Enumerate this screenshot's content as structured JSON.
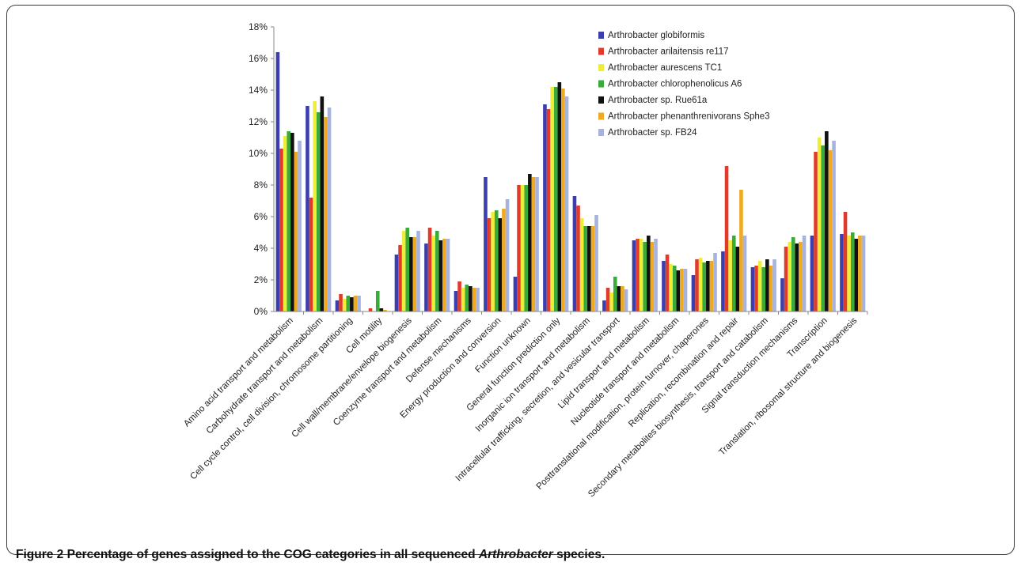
{
  "chart_data": {
    "type": "bar",
    "ylim": [
      0,
      18
    ],
    "yticks": [
      "0%",
      "2%",
      "4%",
      "6%",
      "8%",
      "10%",
      "12%",
      "14%",
      "16%",
      "18%"
    ],
    "ytick_values": [
      0,
      2,
      4,
      6,
      8,
      10,
      12,
      14,
      16,
      18
    ],
    "grid": false,
    "legend_position": "top-right",
    "categories": [
      "Amino acid transport and metabolism",
      "Carbohydrate transport and metabolism",
      "Cell cycle control, cell division, chromosome partitioning",
      "Cell motility",
      "Cell wall/membrane/envelope biogenesis",
      "Coenzyme transport and metabolism",
      "Defense mechanisms",
      "Energy production and conversion",
      "Function unknown",
      "General function prediction only",
      "Inorganic ion transport and metabolism",
      "Intracellular trafficking, secretion, and vesicular transport",
      "Lipid transport and metabolism",
      "Nucleotide transport and metabolism",
      "Posttranslational modification, protein turnover, chaperones",
      "Replication, recombination and repair",
      "Secondary metabolites biosynthesis, transport and catabolism",
      "Signal transduction mechanisms",
      "Transcription",
      "Translation, ribosomal structure and biogenesis"
    ],
    "series": [
      {
        "name": "Arthrobacter globiformis",
        "color": "#3b3fae",
        "values": [
          16.4,
          13.0,
          0.7,
          0.0,
          3.6,
          4.3,
          1.3,
          8.5,
          2.2,
          13.1,
          7.3,
          0.7,
          4.5,
          3.2,
          2.3,
          3.8,
          2.8,
          2.1,
          4.8,
          4.9
        ]
      },
      {
        "name": "Arthrobacter arilaitensis re117",
        "color": "#e03a2a",
        "values": [
          10.3,
          7.2,
          1.1,
          0.2,
          4.2,
          5.3,
          1.9,
          5.9,
          8.0,
          12.8,
          6.7,
          1.5,
          4.6,
          3.6,
          3.3,
          9.2,
          2.9,
          4.1,
          10.1,
          6.3
        ]
      },
      {
        "name": "Arthrobacter aurescens TC1",
        "color": "#eded3a",
        "values": [
          11.1,
          13.3,
          0.8,
          0.0,
          5.1,
          4.8,
          1.5,
          6.3,
          8.0,
          14.2,
          5.9,
          1.2,
          4.6,
          3.0,
          3.4,
          4.5,
          3.2,
          4.4,
          11.0,
          4.8
        ]
      },
      {
        "name": "Arthrobacter chlorophenolicus A6",
        "color": "#3aaa3a",
        "values": [
          11.4,
          12.6,
          1.0,
          1.3,
          5.3,
          5.1,
          1.7,
          6.4,
          8.0,
          14.2,
          5.4,
          2.2,
          4.4,
          2.9,
          3.1,
          4.8,
          2.8,
          4.7,
          10.5,
          5.0
        ]
      },
      {
        "name": "Arthrobacter sp. Rue61a",
        "color": "#111111",
        "values": [
          11.3,
          13.6,
          0.9,
          0.2,
          4.7,
          4.5,
          1.6,
          5.9,
          8.7,
          14.5,
          5.4,
          1.6,
          4.8,
          2.6,
          3.2,
          4.1,
          3.3,
          4.3,
          11.4,
          4.6
        ]
      },
      {
        "name": "Arthrobacter phenanthrenivorans Sphe3",
        "color": "#eeaa22",
        "values": [
          10.1,
          12.3,
          1.0,
          0.1,
          4.7,
          4.6,
          1.5,
          6.5,
          8.5,
          14.1,
          5.4,
          1.6,
          4.4,
          2.7,
          3.2,
          7.7,
          2.9,
          4.4,
          10.2,
          4.8
        ]
      },
      {
        "name": "Arthrobacter sp. FB24",
        "color": "#a7b3dd",
        "values": [
          10.8,
          12.9,
          1.0,
          0.0,
          5.1,
          4.6,
          1.5,
          7.1,
          8.5,
          13.6,
          6.1,
          1.4,
          4.6,
          2.7,
          3.7,
          4.8,
          3.3,
          4.8,
          10.8,
          4.8
        ]
      }
    ]
  },
  "caption": {
    "label": "Figure 2",
    "text_before": " Percentage of genes assigned to the COG categories in all sequenced ",
    "italic": "Arthrobacter",
    "text_after": " species."
  }
}
